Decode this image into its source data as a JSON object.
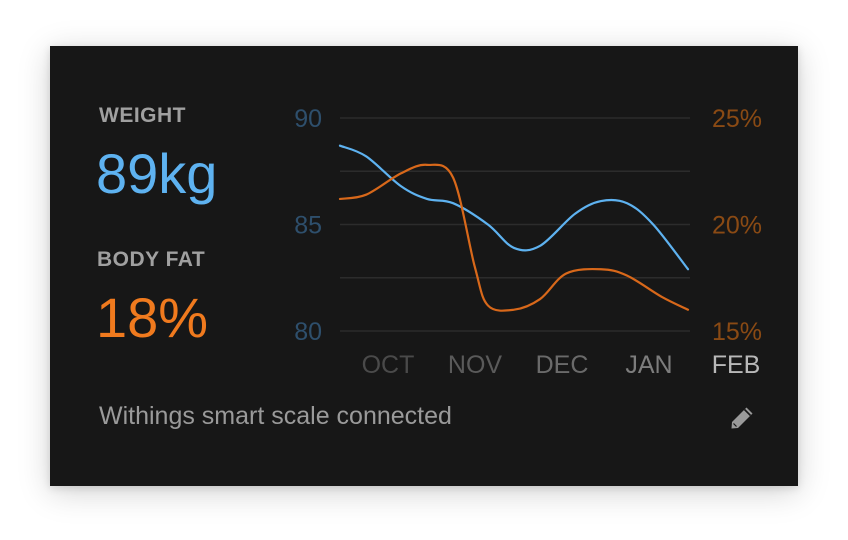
{
  "weight": {
    "label": "WEIGHT",
    "value": "89kg",
    "color": "#5eb2f0"
  },
  "body_fat": {
    "label": "BODY FAT",
    "value": "18%",
    "color": "#f07a1e"
  },
  "footer": {
    "status": "Withings smart scale connected",
    "edit_icon": "pencil-icon"
  },
  "chart_data": {
    "type": "line",
    "categories": [
      "OCT",
      "NOV",
      "DEC",
      "JAN",
      "FEB"
    ],
    "category_colors": [
      "#4a4a4a",
      "#5a5a5a",
      "#6a6a6a",
      "#7d7d7d",
      "#b8b8b8"
    ],
    "y_left": {
      "ticks": [
        "90",
        "85",
        "80"
      ],
      "range": [
        80,
        90
      ],
      "color": "#2e4f6c"
    },
    "y_right": {
      "ticks": [
        "25%",
        "20%",
        "15%"
      ],
      "range": [
        15,
        25
      ],
      "color": "#8a4a14"
    },
    "grid": true,
    "series": [
      {
        "axis": "left",
        "color": "#5eb2f0",
        "points": [
          [
            0,
            88.7
          ],
          [
            0.3,
            88.2
          ],
          [
            0.7,
            86.8
          ],
          [
            1.0,
            86.2
          ],
          [
            1.3,
            86.0
          ],
          [
            1.7,
            85.0
          ],
          [
            2.0,
            83.9
          ],
          [
            2.3,
            84.0
          ],
          [
            2.7,
            85.5
          ],
          [
            3.0,
            86.1
          ],
          [
            3.3,
            86.0
          ],
          [
            3.6,
            85.0
          ],
          [
            4.0,
            82.9
          ]
        ]
      },
      {
        "axis": "right",
        "color": "#d8681a",
        "points": [
          [
            0,
            21.2
          ],
          [
            0.3,
            21.4
          ],
          [
            0.7,
            22.4
          ],
          [
            1.0,
            22.8
          ],
          [
            1.3,
            22.2
          ],
          [
            1.55,
            18.0
          ],
          [
            1.7,
            16.2
          ],
          [
            2.0,
            16.0
          ],
          [
            2.3,
            16.5
          ],
          [
            2.6,
            17.7
          ],
          [
            3.0,
            17.9
          ],
          [
            3.3,
            17.6
          ],
          [
            3.7,
            16.6
          ],
          [
            4.0,
            16.0
          ]
        ]
      }
    ]
  }
}
